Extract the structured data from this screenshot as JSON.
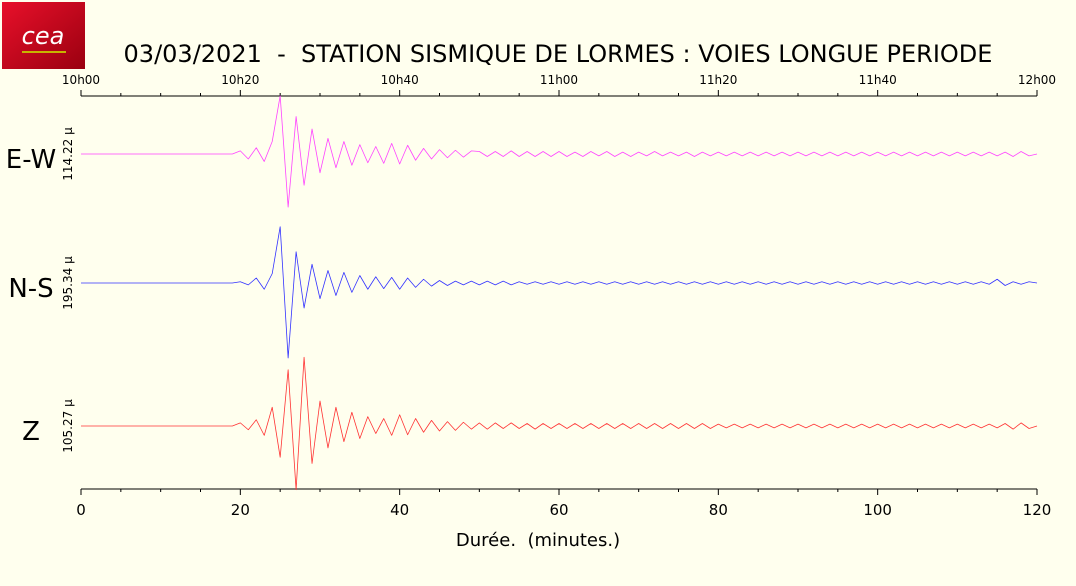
{
  "chart_data": {
    "type": "seismogram",
    "title": "03/03/2021  -  STATION SISMIQUE DE LORMES : VOIES LONGUE PERIODE",
    "logo": "cea",
    "xlabel": "Durée.  (minutes.)",
    "xlim": [
      0,
      120
    ],
    "xticks": [
      0,
      20,
      40,
      60,
      80,
      100,
      120
    ],
    "xminorticks": [
      5,
      10,
      15,
      25,
      30,
      35,
      45,
      50,
      55,
      65,
      70,
      75,
      85,
      90,
      95,
      105,
      110,
      115
    ],
    "xticks_top": [
      {
        "value": 0,
        "label": "10h00"
      },
      {
        "value": 20,
        "label": "10h20"
      },
      {
        "value": 40,
        "label": "10h40"
      },
      {
        "value": 60,
        "label": "11h00"
      },
      {
        "value": 80,
        "label": "11h20"
      },
      {
        "value": 100,
        "label": "11h40"
      },
      {
        "value": 120,
        "label": "12h00"
      }
    ],
    "ylim": [
      -1.2,
      1.2
    ],
    "x": [
      0,
      1,
      2,
      3,
      4,
      5,
      6,
      7,
      8,
      9,
      10,
      11,
      12,
      13,
      14,
      15,
      16,
      17,
      18,
      19,
      20,
      21,
      22,
      23,
      24,
      25,
      26,
      27,
      28,
      29,
      30,
      31,
      32,
      33,
      34,
      35,
      36,
      37,
      38,
      39,
      40,
      41,
      42,
      43,
      44,
      45,
      46,
      47,
      48,
      49,
      50,
      51,
      52,
      53,
      54,
      55,
      56,
      57,
      58,
      59,
      60,
      61,
      62,
      63,
      64,
      65,
      66,
      67,
      68,
      69,
      70,
      71,
      72,
      73,
      74,
      75,
      76,
      77,
      78,
      79,
      80,
      81,
      82,
      83,
      84,
      85,
      86,
      87,
      88,
      89,
      90,
      91,
      92,
      93,
      94,
      95,
      96,
      97,
      98,
      99,
      100,
      101,
      102,
      103,
      104,
      105,
      106,
      107,
      108,
      109,
      110,
      111,
      112,
      113,
      114,
      115,
      116,
      117,
      118,
      119,
      120
    ],
    "series": [
      {
        "name": "E-W",
        "scale_label": "114.22 µ",
        "color": "#ff44ff",
        "values": [
          0,
          0,
          0,
          0,
          0,
          0,
          0,
          0,
          0,
          0,
          0,
          0,
          0,
          0,
          0,
          0,
          0,
          0,
          0,
          0,
          0.05,
          -0.08,
          0.1,
          -0.12,
          0.2,
          0.93,
          -0.85,
          0.6,
          -0.5,
          0.4,
          -0.3,
          0.25,
          -0.22,
          0.2,
          -0.18,
          0.15,
          -0.14,
          0.12,
          -0.15,
          0.17,
          -0.16,
          0.14,
          -0.1,
          0.09,
          -0.08,
          0.07,
          -0.06,
          0.06,
          -0.05,
          0.05,
          0.04,
          -0.04,
          0.04,
          -0.04,
          0.05,
          -0.04,
          0.04,
          -0.04,
          0.04,
          -0.04,
          0.04,
          -0.04,
          0.03,
          -0.04,
          0.04,
          -0.03,
          0.04,
          -0.04,
          0.03,
          -0.04,
          0.03,
          -0.03,
          0.04,
          -0.03,
          0.03,
          -0.03,
          0.03,
          -0.04,
          0.03,
          -0.03,
          0.03,
          -0.03,
          0.03,
          -0.03,
          0.03,
          -0.03,
          0.03,
          -0.03,
          0.03,
          -0.03,
          0.03,
          -0.03,
          0.03,
          -0.03,
          0.03,
          -0.03,
          0.03,
          -0.03,
          0.03,
          -0.03,
          0.03,
          -0.03,
          0.03,
          -0.03,
          0.03,
          -0.03,
          0.03,
          -0.03,
          0.03,
          -0.03,
          0.03,
          -0.03,
          0.03,
          -0.03,
          0.03,
          -0.03,
          0.03,
          -0.04,
          0.04,
          -0.03,
          0
        ]
      },
      {
        "name": "N-S",
        "scale_label": "195.34 µ",
        "color": "#3333ff",
        "values": [
          0,
          0,
          0,
          0,
          0,
          0,
          0,
          0,
          0,
          0,
          0,
          0,
          0,
          0,
          0,
          0,
          0,
          0,
          0,
          0,
          0.02,
          -0.03,
          0.08,
          -0.1,
          0.15,
          0.9,
          -1.2,
          0.5,
          -0.4,
          0.3,
          -0.25,
          0.2,
          -0.2,
          0.17,
          -0.15,
          0.12,
          -0.1,
          0.1,
          -0.09,
          0.09,
          -0.1,
          0.08,
          -0.07,
          0.06,
          -0.05,
          0.04,
          -0.04,
          0.03,
          -0.03,
          0.03,
          -0.03,
          0.03,
          -0.03,
          0.03,
          -0.03,
          0.02,
          -0.02,
          0.02,
          -0.02,
          0.02,
          -0.02,
          0.02,
          -0.02,
          0.02,
          -0.02,
          0.02,
          -0.02,
          0.02,
          -0.02,
          0.02,
          -0.02,
          0.02,
          -0.02,
          0.02,
          -0.02,
          0.02,
          -0.02,
          0.02,
          -0.02,
          0.02,
          -0.02,
          0.02,
          -0.02,
          0.02,
          -0.02,
          0.02,
          -0.02,
          0.02,
          -0.02,
          0.02,
          -0.02,
          0.02,
          -0.02,
          0.02,
          -0.02,
          0.02,
          -0.02,
          0.02,
          -0.02,
          0.02,
          -0.02,
          0.02,
          -0.02,
          0.02,
          -0.02,
          0.02,
          -0.02,
          0.02,
          -0.02,
          0.02,
          -0.02,
          0.02,
          -0.02,
          0.02,
          -0.02,
          0.06,
          -0.04,
          0.02,
          -0.02,
          0.02,
          0
        ]
      },
      {
        "name": "Z",
        "scale_label": "105.27 µ",
        "color": "#ff3333",
        "values": [
          0,
          0,
          0,
          0,
          0,
          0,
          0,
          0,
          0,
          0,
          0,
          0,
          0,
          0,
          0,
          0,
          0,
          0,
          0,
          0,
          0.05,
          -0.06,
          0.1,
          -0.15,
          0.3,
          -0.5,
          0.9,
          -1.02,
          1.1,
          -0.6,
          0.4,
          -0.35,
          0.3,
          -0.25,
          0.22,
          -0.2,
          0.15,
          -0.12,
          0.12,
          -0.15,
          0.18,
          -0.14,
          0.12,
          -0.1,
          0.09,
          -0.08,
          0.07,
          -0.07,
          0.06,
          -0.05,
          0.05,
          -0.05,
          0.05,
          -0.04,
          0.05,
          -0.04,
          0.04,
          -0.05,
          0.04,
          -0.04,
          0.04,
          -0.04,
          0.04,
          -0.04,
          0.04,
          -0.04,
          0.04,
          -0.04,
          0.04,
          -0.04,
          0.04,
          -0.04,
          0.04,
          -0.04,
          0.04,
          -0.04,
          0.04,
          -0.04,
          0.04,
          -0.04,
          0.03,
          -0.03,
          0.03,
          -0.03,
          0.03,
          -0.03,
          0.03,
          -0.03,
          0.03,
          -0.03,
          0.03,
          -0.03,
          0.03,
          -0.03,
          0.03,
          -0.03,
          0.03,
          -0.03,
          0.03,
          -0.03,
          0.03,
          -0.03,
          0.03,
          -0.03,
          0.03,
          -0.03,
          0.03,
          -0.03,
          0.03,
          -0.03,
          0.03,
          -0.03,
          0.03,
          -0.03,
          0.03,
          -0.03,
          0.04,
          -0.05,
          0.05,
          -0.04,
          0
        ]
      }
    ]
  }
}
